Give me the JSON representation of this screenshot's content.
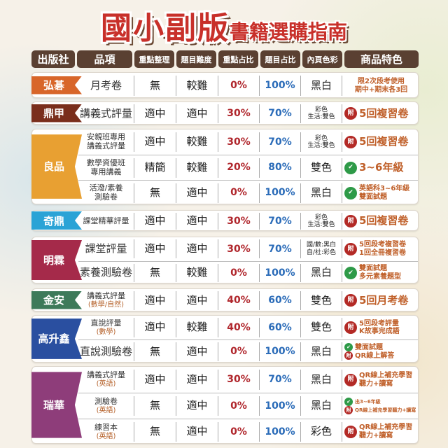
{
  "title": {
    "main": "國小副版",
    "sub": "書籍選購指南"
  },
  "headers": [
    "出版社",
    "品項",
    "重點整理",
    "題目難度",
    "重點占比",
    "題目占比",
    "內頁色彩",
    "商品特色"
  ],
  "colors": {
    "header_bg": "#5a4032",
    "key_pct": "#b0262c",
    "q_pct": "#2a6bb8",
    "feature_text": "#c0602a",
    "fu_badge": "#b32a26",
    "check_badge": "#2e9a48"
  },
  "groups": [
    {
      "publisher": "弘碁",
      "color": "#d8662a",
      "rows": [
        {
          "item": [
            "月考卷"
          ],
          "summary": "無",
          "difficulty": "較難",
          "key_pct": "0%",
          "q_pct": "100%",
          "page_color": [
            "黑白"
          ],
          "features": [
            {
              "icon": "",
              "text": "限2次段考使用"
            },
            {
              "icon": "",
              "text": "期中+期末各3回"
            }
          ]
        }
      ]
    },
    {
      "publisher": "鼎甲",
      "color": "#7a2e1c",
      "rows": [
        {
          "item": [
            "講義式評量"
          ],
          "summary": "適中",
          "difficulty": "適中",
          "key_pct": "30%",
          "q_pct": "70%",
          "page_color": [
            "彩色",
            "生活:雙色"
          ],
          "features": [
            {
              "icon": "fu-badge",
              "text": "5回複習卷"
            }
          ]
        }
      ]
    },
    {
      "publisher": "良品",
      "color": "#e8a032",
      "rows": [
        {
          "item": [
            "安親班專用",
            "講義式評量"
          ],
          "summary": "適中",
          "difficulty": "較難",
          "key_pct": "30%",
          "q_pct": "70%",
          "page_color": [
            "彩色",
            "生活:雙色"
          ],
          "features": [
            {
              "icon": "fu-badge",
              "text": "5回複習卷"
            }
          ]
        },
        {
          "item": [
            "數學資優班",
            "專用講義"
          ],
          "summary": "精簡",
          "difficulty": "較難",
          "key_pct": "20%",
          "q_pct": "80%",
          "page_color": [
            "雙色"
          ],
          "features": [
            {
              "icon": "check-icon",
              "text": "3~6年級"
            }
          ]
        },
        {
          "item": [
            "活潑/素養",
            "測驗卷"
          ],
          "summary": "無",
          "difficulty": "適中",
          "key_pct": "0%",
          "q_pct": "100%",
          "page_color": [
            "黑白"
          ],
          "features": [
            {
              "icon": "check-icon",
              "text": "英語科3~6年級"
            },
            {
              "icon": "",
              "text": "雙面試題"
            }
          ]
        }
      ]
    },
    {
      "publisher": "奇鼎",
      "color": "#2aa3d6",
      "rows": [
        {
          "item": [
            "課堂精華評量"
          ],
          "summary": "適中",
          "difficulty": "適中",
          "key_pct": "30%",
          "q_pct": "70%",
          "page_color": [
            "彩色",
            "生活:雙色"
          ],
          "features": [
            {
              "icon": "fu-badge",
              "text": "5回複習卷"
            }
          ]
        }
      ]
    },
    {
      "publisher": "明霖",
      "color": "#a52a4a",
      "rows": [
        {
          "item": [
            "課堂評量"
          ],
          "summary": "適中",
          "difficulty": "適中",
          "key_pct": "30%",
          "q_pct": "70%",
          "page_color": [
            "國/數:黑白",
            "自/社:彩色"
          ],
          "features": [
            {
              "icon": "fu-badge",
              "text": "5回段考複習卷"
            },
            {
              "icon": "",
              "text": "1回全冊複習卷"
            }
          ]
        },
        {
          "item": [
            "素養測驗卷"
          ],
          "summary": "無",
          "difficulty": "較難",
          "key_pct": "0%",
          "q_pct": "100%",
          "page_color": [
            "黑白"
          ],
          "features": [
            {
              "icon": "check-icon",
              "text": "雙面試題"
            },
            {
              "icon": "",
              "text": "多元素養題型"
            }
          ]
        }
      ]
    },
    {
      "publisher": "金安",
      "color": "#3d7a5a",
      "rows": [
        {
          "item": [
            "講義式評量",
            "(數學/自然)"
          ],
          "summary": "適中",
          "difficulty": "適中",
          "key_pct": "40%",
          "q_pct": "60%",
          "page_color": [
            "雙色"
          ],
          "features": [
            {
              "icon": "fu-badge",
              "text": "5回月考卷"
            }
          ]
        }
      ]
    },
    {
      "publisher": "高升鑫",
      "color": "#2a4fa0",
      "rows": [
        {
          "item": [
            "直說評量",
            "(數學)"
          ],
          "summary": "適中",
          "difficulty": "較難",
          "key_pct": "40%",
          "q_pct": "60%",
          "page_color": [
            "雙色"
          ],
          "features": [
            {
              "icon": "fu-badge",
              "text": "5回段考評量"
            },
            {
              "icon": "",
              "text": "K故事完成語"
            }
          ]
        },
        {
          "item": [
            "直說測驗卷"
          ],
          "summary": "無",
          "difficulty": "適中",
          "key_pct": "0%",
          "q_pct": "100%",
          "page_color": [
            "黑白"
          ],
          "features": [
            {
              "icon": "check-icon",
              "text": "雙面試題"
            },
            {
              "icon": "fu-badge",
              "text": "QR線上解答"
            }
          ]
        }
      ]
    },
    {
      "publisher": "瑞華",
      "color": "#8e3d7a",
      "rows": [
        {
          "item": [
            "講義式評量",
            "(英語)"
          ],
          "summary": "適中",
          "difficulty": "適中",
          "key_pct": "30%",
          "q_pct": "70%",
          "page_color": [
            "黑白"
          ],
          "features": [
            {
              "icon": "fu-badge",
              "text": "QR線上補充學習"
            },
            {
              "icon": "",
              "text": "聽力+讀寫"
            }
          ]
        },
        {
          "item": [
            "測驗卷",
            "(英語)"
          ],
          "summary": "無",
          "difficulty": "適中",
          "key_pct": "0%",
          "q_pct": "100%",
          "page_color": [
            "黑白"
          ],
          "features": [
            {
              "icon": "check-icon",
              "text": "出3~6年級"
            },
            {
              "icon": "fu-badge",
              "text": "QR線上補充學習聽力+讀寫"
            }
          ]
        },
        {
          "item": [
            "練習本",
            "(英語)"
          ],
          "summary": "無",
          "difficulty": "適中",
          "key_pct": "0%",
          "q_pct": "100%",
          "page_color": [
            "彩色"
          ],
          "features": [
            {
              "icon": "fu-badge",
              "text": "QR線上補充學習"
            },
            {
              "icon": "",
              "text": "聽力+讀寫"
            }
          ]
        }
      ]
    }
  ]
}
